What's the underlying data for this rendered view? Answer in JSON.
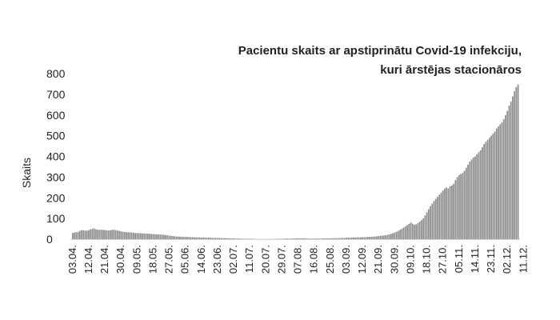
{
  "chart_data": {
    "type": "bar",
    "title_lines": [
      "Pacientu skaits ar apstiprinātu Covid-19 infekciju,",
      "kuri ārstējas stacionāros"
    ],
    "ylabel": "Skaits",
    "xlabel": "",
    "ylim": [
      0,
      800
    ],
    "yticks": [
      0,
      100,
      200,
      300,
      400,
      500,
      600,
      700,
      800
    ],
    "grid": false,
    "bar_color": "#8c8c8c",
    "x_start": "2020-04-03",
    "x_tick_labels": [
      "03.04.",
      "12.04.",
      "21.04.",
      "30.04.",
      "09.05.",
      "18.05.",
      "27.05.",
      "05.06.",
      "14.06.",
      "23.06.",
      "02.07.",
      "11.07.",
      "20.07.",
      "29.07.",
      "07.08.",
      "16.08.",
      "25.08.",
      "03.09.",
      "12.09.",
      "21.09.",
      "30.09.",
      "09.10.",
      "18.10.",
      "27.10.",
      "05.11.",
      "14.11.",
      "23.11.",
      "02.12.",
      "11.12."
    ],
    "values": [
      30,
      32,
      34,
      35,
      40,
      44,
      43,
      42,
      41,
      44,
      48,
      50,
      52,
      48,
      46,
      45,
      46,
      45,
      44,
      43,
      42,
      43,
      45,
      46,
      44,
      42,
      40,
      38,
      36,
      35,
      34,
      33,
      33,
      32,
      31,
      30,
      30,
      29,
      29,
      28,
      28,
      27,
      27,
      26,
      25,
      25,
      24,
      24,
      23,
      22,
      22,
      21,
      20,
      19,
      17,
      16,
      15,
      14,
      13,
      13,
      12,
      12,
      11,
      11,
      11,
      10,
      10,
      10,
      9,
      9,
      9,
      8,
      8,
      8,
      8,
      7,
      7,
      7,
      7,
      6,
      6,
      6,
      6,
      5,
      5,
      5,
      5,
      4,
      4,
      4,
      4,
      3,
      3,
      3,
      3,
      2,
      2,
      2,
      2,
      2,
      2,
      2,
      1,
      1,
      1,
      1,
      1,
      1,
      1,
      1,
      1,
      1,
      1,
      1,
      2,
      2,
      2,
      2,
      2,
      3,
      3,
      3,
      3,
      3,
      4,
      4,
      4,
      4,
      4,
      4,
      4,
      3,
      3,
      3,
      3,
      3,
      3,
      3,
      3,
      3,
      4,
      4,
      4,
      4,
      4,
      4,
      5,
      5,
      5,
      5,
      6,
      6,
      6,
      7,
      7,
      7,
      8,
      8,
      8,
      9,
      9,
      9,
      10,
      10,
      10,
      11,
      11,
      12,
      12,
      13,
      14,
      15,
      16,
      17,
      18,
      19,
      21,
      23,
      26,
      29,
      32,
      36,
      40,
      45,
      50,
      56,
      62,
      68,
      74,
      80,
      75,
      70,
      72,
      78,
      85,
      92,
      100,
      115,
      130,
      145,
      160,
      172,
      185,
      195,
      205,
      215,
      225,
      235,
      245,
      250,
      245,
      255,
      260,
      268,
      285,
      300,
      310,
      315,
      320,
      330,
      345,
      360,
      375,
      385,
      395,
      400,
      410,
      420,
      430,
      445,
      460,
      470,
      480,
      490,
      500,
      510,
      520,
      535,
      545,
      555,
      565,
      580,
      600,
      620,
      645,
      665,
      690,
      715,
      735,
      748
    ]
  }
}
